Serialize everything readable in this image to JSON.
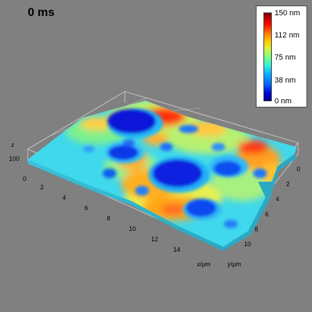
{
  "time_label": "0 ms",
  "legend": {
    "labels": [
      "150 nm",
      "112 nm",
      "75 nm",
      "38 nm",
      "0 nm"
    ]
  },
  "axes": {
    "z_name": "z",
    "z_tick": "100",
    "z_zero": "0",
    "x_ticks": [
      "2",
      "4",
      "6",
      "8",
      "10",
      "12",
      "14"
    ],
    "y_ticks": [
      "0",
      "2",
      "4",
      "6",
      "8",
      "10"
    ],
    "x_name": "x/μm",
    "y_name": "y/μm"
  },
  "colors": {
    "background": "#808080",
    "surface_base": "#40d8ec",
    "high": "#ff2000",
    "mid_high": "#ffb020",
    "deep": "#0018d8"
  }
}
